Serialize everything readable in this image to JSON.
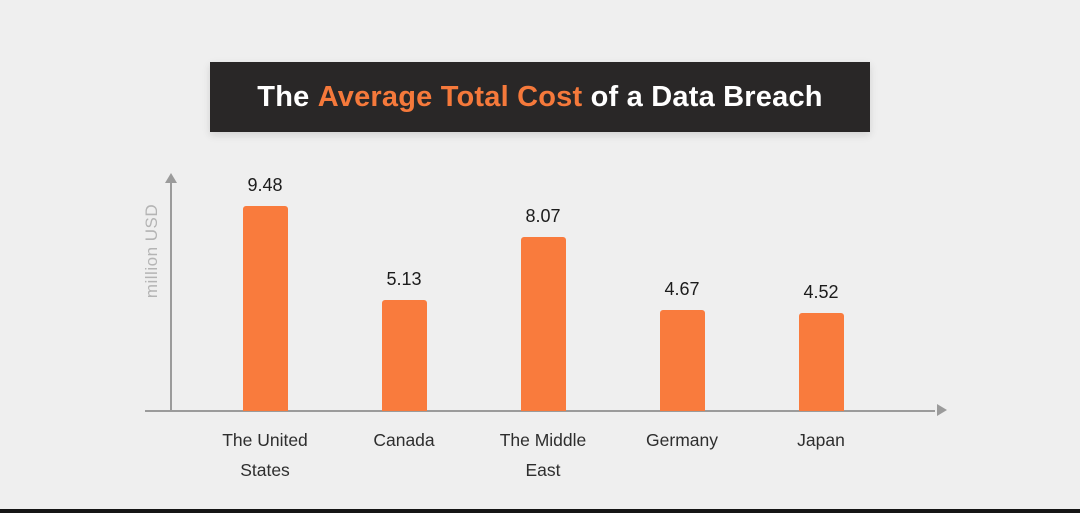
{
  "title": {
    "prefix": "The ",
    "accent": "Average Total Cost",
    "suffix": " of a Data Breach"
  },
  "colors": {
    "background": "#efefef",
    "banner_bg": "#292727",
    "banner_text": "#ffffff",
    "accent_orange": "#f5793b",
    "bar_orange": "#f97b3d",
    "axis_gray": "#9b9b9b",
    "ylabel_gray": "#b4b4b4",
    "value_text": "#1c1c1c",
    "category_text": "#2e2e2e"
  },
  "chart_data": {
    "type": "bar",
    "title": "The Average Total Cost of a Data Breach",
    "categories": [
      "The United States",
      "Canada",
      "The Middle East",
      "Germany",
      "Japan"
    ],
    "values": [
      9.48,
      5.13,
      8.07,
      4.67,
      4.52
    ],
    "xlabel": "",
    "ylabel": "million USD",
    "ylim": [
      0,
      10.9
    ],
    "grid": false,
    "legend": null,
    "bar_color": "#f97b3d",
    "value_labels_shown": true
  }
}
